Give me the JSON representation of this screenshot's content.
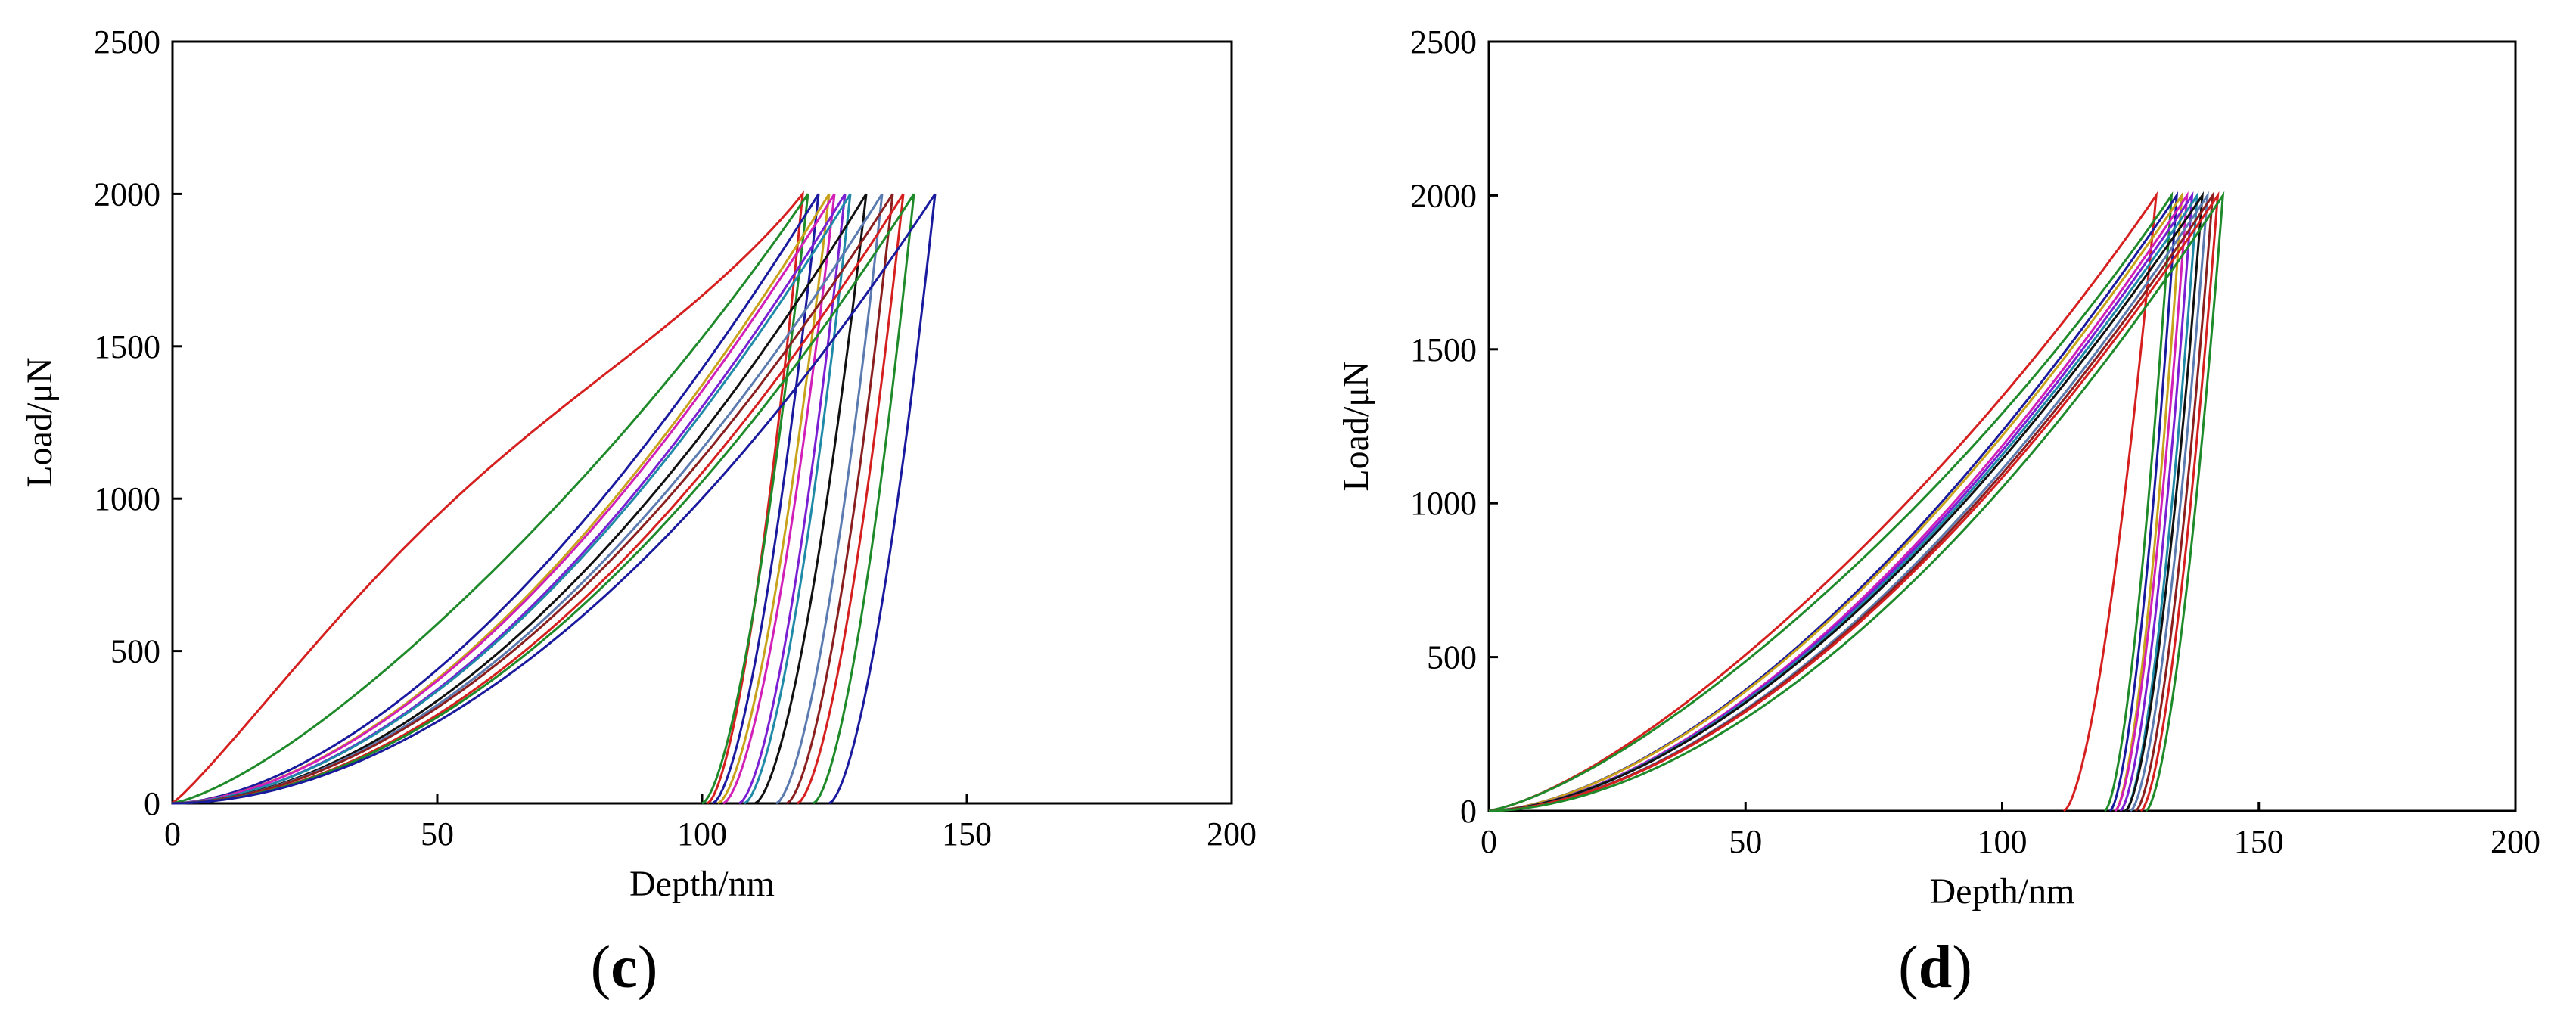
{
  "colors": [
    "#d62020",
    "#1f8a2a",
    "#1a1a9e",
    "#c8a21a",
    "#d11fb8",
    "#7a1fd1",
    "#1f8aa8",
    "#111111",
    "#5a7ab0",
    "#8a1f1f"
  ],
  "chart_data": [
    {
      "type": "line",
      "caption": "c",
      "xlabel": "Depth/nm",
      "ylabel": "Load/μN",
      "xlim": [
        0,
        200
      ],
      "ylim": [
        0,
        2500
      ],
      "xticks": [
        "0",
        "50",
        "100",
        "150",
        "200"
      ],
      "yticks": [
        "0",
        "500",
        "1000",
        "1500",
        "2000",
        "2500"
      ],
      "grid": false,
      "max_load": 2000,
      "curves": [
        {
          "max_depth": 119,
          "final_depth": 101,
          "exponent": 1.35,
          "bump": 0.22
        },
        {
          "max_depth": 120,
          "final_depth": 100,
          "exponent": 1.55,
          "bump": 0.05
        },
        {
          "max_depth": 122,
          "final_depth": 102,
          "exponent": 1.7,
          "bump": 0.0
        },
        {
          "max_depth": 124,
          "final_depth": 103,
          "exponent": 1.75,
          "bump": 0.0
        },
        {
          "max_depth": 125,
          "final_depth": 104,
          "exponent": 1.75,
          "bump": 0.0
        },
        {
          "max_depth": 127,
          "final_depth": 107,
          "exponent": 1.8,
          "bump": 0.0
        },
        {
          "max_depth": 128,
          "final_depth": 108,
          "exponent": 1.8,
          "bump": 0.0
        },
        {
          "max_depth": 131,
          "final_depth": 110,
          "exponent": 1.85,
          "bump": 0.0
        },
        {
          "max_depth": 134,
          "final_depth": 114,
          "exponent": 1.85,
          "bump": 0.0
        },
        {
          "max_depth": 136,
          "final_depth": 116,
          "exponent": 1.85,
          "bump": 0.0
        },
        {
          "max_depth": 138,
          "final_depth": 118,
          "exponent": 1.9,
          "bump": 0.0
        },
        {
          "max_depth": 140,
          "final_depth": 121,
          "exponent": 1.9,
          "bump": 0.0
        },
        {
          "max_depth": 144,
          "final_depth": 124,
          "exponent": 1.9,
          "bump": 0.0
        }
      ]
    },
    {
      "type": "line",
      "caption": "d",
      "xlabel": "Depth/nm",
      "ylabel": "Load/μN",
      "xlim": [
        0,
        200
      ],
      "ylim": [
        0,
        2500
      ],
      "xticks": [
        "0",
        "50",
        "100",
        "150",
        "200"
      ],
      "yticks": [
        "0",
        "500",
        "1000",
        "1500",
        "2000",
        "2500"
      ],
      "grid": false,
      "max_load": 2000,
      "curves": [
        {
          "max_depth": 130,
          "final_depth": 112,
          "exponent": 1.6,
          "bump": 0.05
        },
        {
          "max_depth": 133,
          "final_depth": 120,
          "exponent": 1.65,
          "bump": 0.06
        },
        {
          "max_depth": 134,
          "final_depth": 121,
          "exponent": 1.65,
          "bump": 0.0
        },
        {
          "max_depth": 135,
          "final_depth": 122,
          "exponent": 1.65,
          "bump": 0.0
        },
        {
          "max_depth": 136,
          "final_depth": 122,
          "exponent": 1.7,
          "bump": 0.0
        },
        {
          "max_depth": 137,
          "final_depth": 123,
          "exponent": 1.7,
          "bump": 0.0
        },
        {
          "max_depth": 138,
          "final_depth": 124,
          "exponent": 1.7,
          "bump": 0.0
        },
        {
          "max_depth": 139,
          "final_depth": 124,
          "exponent": 1.7,
          "bump": 0.0
        },
        {
          "max_depth": 140,
          "final_depth": 125,
          "exponent": 1.75,
          "bump": 0.0
        },
        {
          "max_depth": 141,
          "final_depth": 126,
          "exponent": 1.75,
          "bump": 0.0
        },
        {
          "max_depth": 142,
          "final_depth": 127,
          "exponent": 1.75,
          "bump": 0.0
        },
        {
          "max_depth": 143,
          "final_depth": 128,
          "exponent": 1.8,
          "bump": 0.0
        }
      ]
    }
  ]
}
